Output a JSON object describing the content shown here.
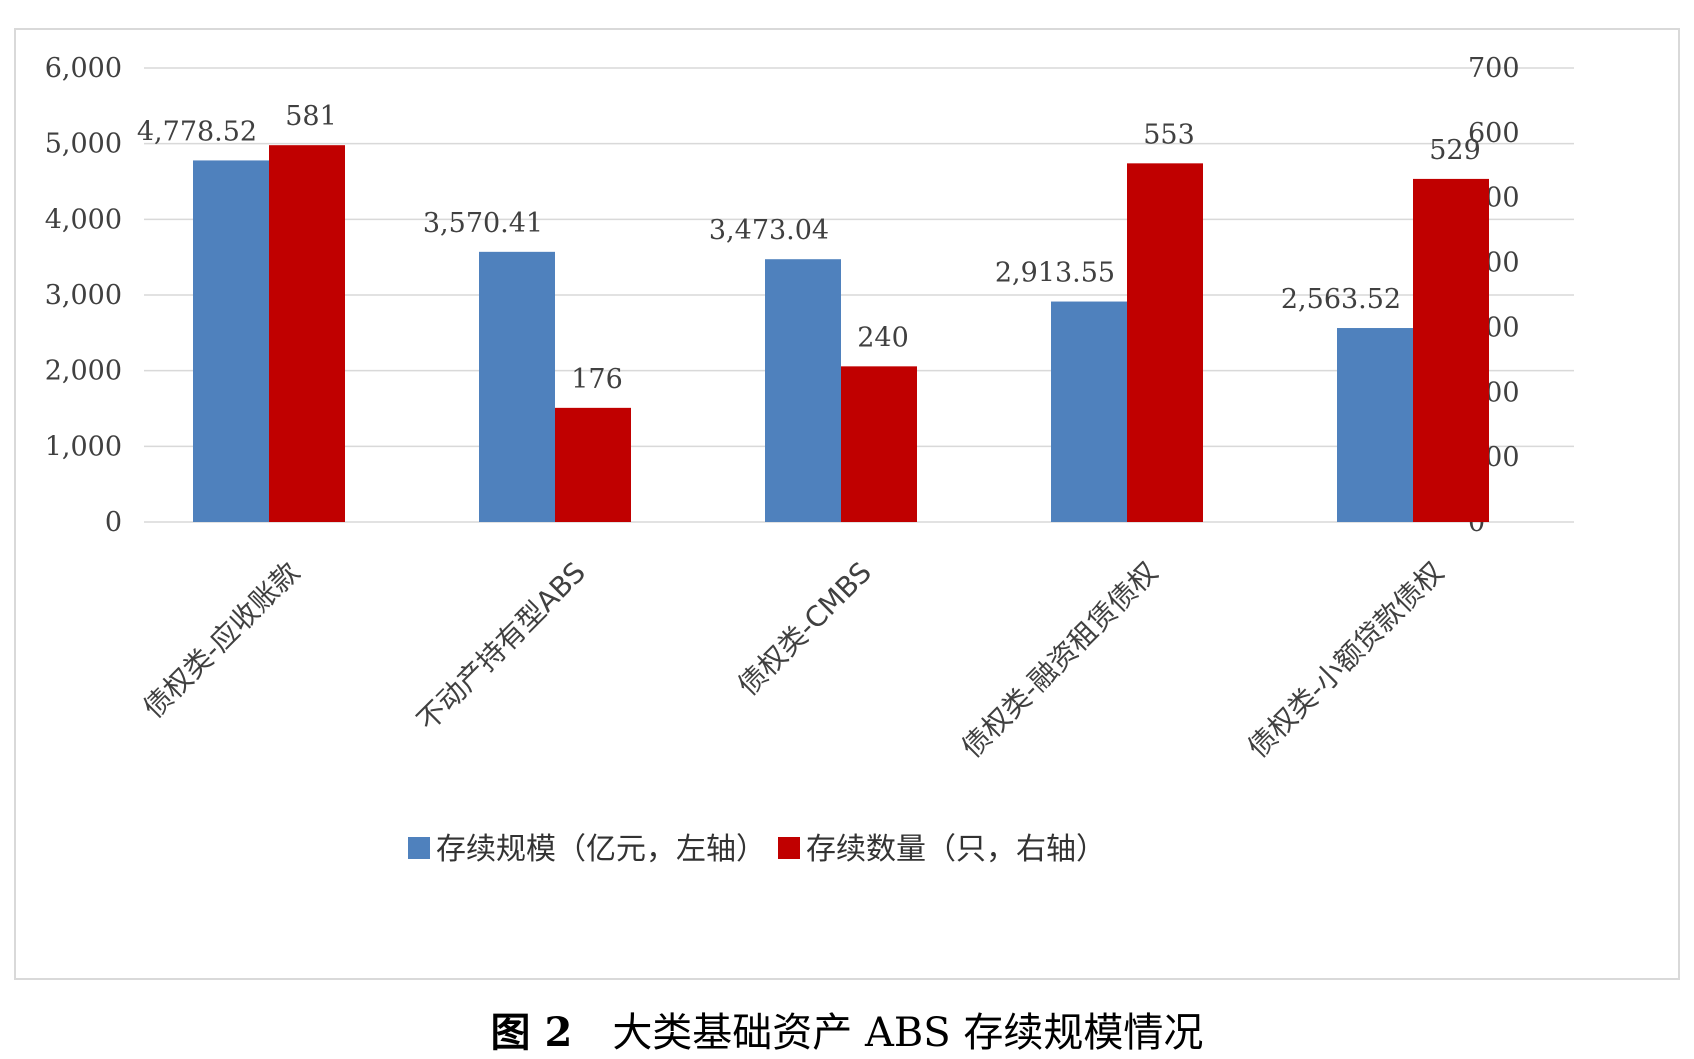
{
  "chart_data": {
    "type": "bar",
    "categories": [
      "债权类-应收账款",
      "不动产持有型ABS",
      "债权类-CMBS",
      "债权类-融资租赁债权",
      "债权类-小额贷款债权"
    ],
    "series": [
      {
        "name": "存续规模（亿元，左轴）",
        "axis": "left",
        "color": "#4f81bd",
        "values": [
          4778.52,
          3570.41,
          3473.04,
          2913.55,
          2563.52
        ],
        "labels": [
          "4,778.52",
          "3,570.41",
          "3,473.04",
          "2,913.55",
          "2,563.52"
        ]
      },
      {
        "name": "存续数量（只，右轴）",
        "axis": "right",
        "color": "#c00000",
        "values": [
          581,
          176,
          240,
          553,
          529
        ],
        "labels": [
          "581",
          "176",
          "240",
          "553",
          "529"
        ]
      }
    ],
    "ylim_left": [
      0,
      6000
    ],
    "ylim_right": [
      0,
      700
    ],
    "yticks_left": [
      "0",
      "1,000",
      "2,000",
      "3,000",
      "4,000",
      "5,000",
      "6,000"
    ],
    "yticks_right": [
      "0",
      "100",
      "200",
      "300",
      "400",
      "500",
      "600",
      "700"
    ],
    "grid": true,
    "legend_position": "bottom"
  },
  "caption": {
    "fig": "图 2",
    "title": "大类基础资产 ABS 存续规模情况"
  }
}
